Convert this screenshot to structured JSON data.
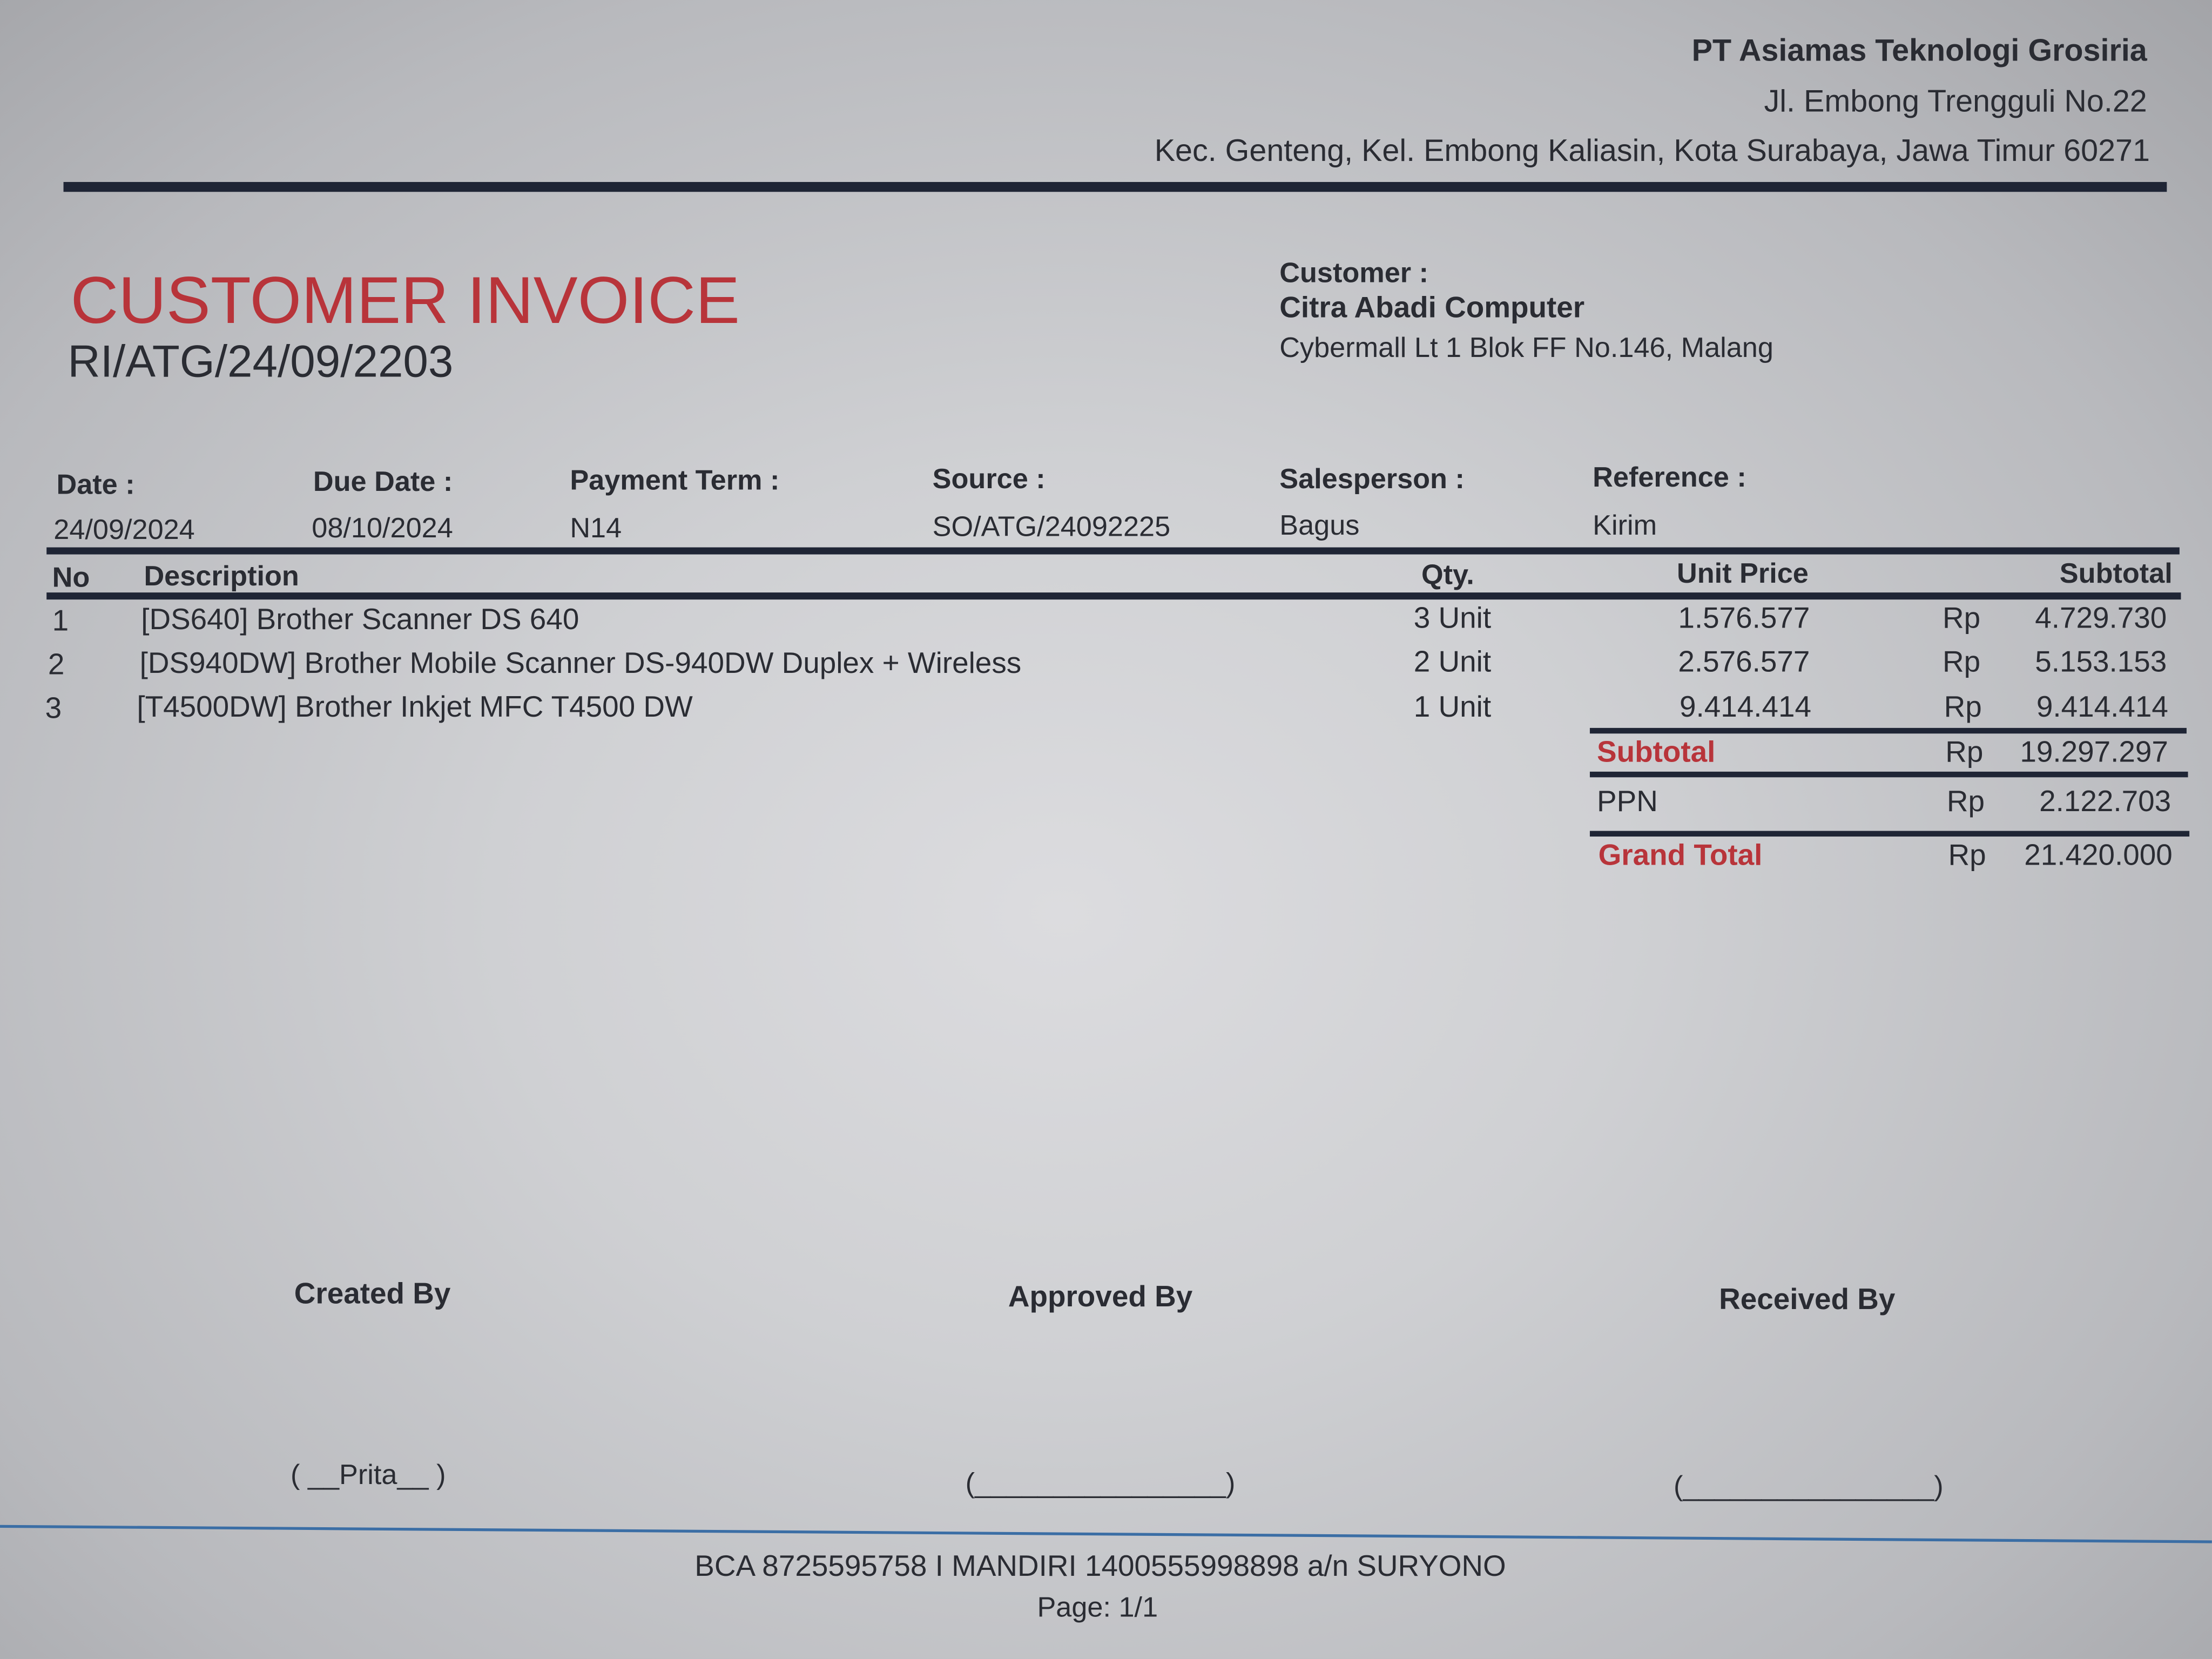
{
  "company": {
    "name": "PT Asiamas Teknologi Grosiria",
    "address_line1": "Jl. Embong Trengguli No.22",
    "address_line2": "Kec. Genteng, Kel. Embong Kaliasin, Kota Surabaya, Jawa Timur 60271"
  },
  "invoice": {
    "title": "CUSTOMER INVOICE",
    "number": "RI/ATG/24/09/2203"
  },
  "customer": {
    "label": "Customer :",
    "name": "Citra Abadi Computer",
    "address": "Cybermall Lt 1 Blok FF No.146, Malang"
  },
  "meta": [
    {
      "label": "Date :",
      "value": "24/09/2024"
    },
    {
      "label": "Due Date :",
      "value": "08/10/2024"
    },
    {
      "label": "Payment Term :",
      "value": "N14"
    },
    {
      "label": "Source :",
      "value": "SO/ATG/24092225"
    },
    {
      "label": "Salesperson :",
      "value": "Bagus"
    },
    {
      "label": "Reference :",
      "value": "Kirim"
    }
  ],
  "table": {
    "headers": {
      "no": "No",
      "description": "Description",
      "qty": "Qty.",
      "unit_price": "Unit Price",
      "subtotal": "Subtotal"
    },
    "rows": [
      {
        "no": "1",
        "description": "[DS640] Brother Scanner DS 640",
        "qty": "3 Unit",
        "unit_price": "1.576.577",
        "currency": "Rp",
        "subtotal": "4.729.730"
      },
      {
        "no": "2",
        "description": "[DS940DW] Brother Mobile Scanner DS-940DW Duplex + Wireless",
        "qty": "2 Unit",
        "unit_price": "2.576.577",
        "currency": "Rp",
        "subtotal": "5.153.153"
      },
      {
        "no": "3",
        "description": "[T4500DW] Brother Inkjet MFC T4500 DW",
        "qty": "1 Unit",
        "unit_price": "9.414.414",
        "currency": "Rp",
        "subtotal": "9.414.414"
      }
    ]
  },
  "totals": {
    "subtotal": {
      "label": "Subtotal",
      "currency": "Rp",
      "value": "19.297.297"
    },
    "ppn": {
      "label": "PPN",
      "currency": "Rp",
      "value": "2.122.703"
    },
    "grand_total": {
      "label": "Grand Total",
      "currency": "Rp",
      "value": "21.420.000"
    }
  },
  "signatures": {
    "created_by": {
      "label": "Created By",
      "name": "( __Prita__ )"
    },
    "approved_by": {
      "label": "Approved By",
      "name": "(________________)"
    },
    "received_by": {
      "label": "Received By",
      "name": "(________________)"
    }
  },
  "footer": {
    "bank": "BCA 8725595758 I MANDIRI 1400555998898 a/n SURYONO",
    "page": "Page: 1/1"
  },
  "colors": {
    "accent_red": "#b8343a",
    "rule": "#1f2535",
    "footer_rule": "#3b6ea5"
  }
}
